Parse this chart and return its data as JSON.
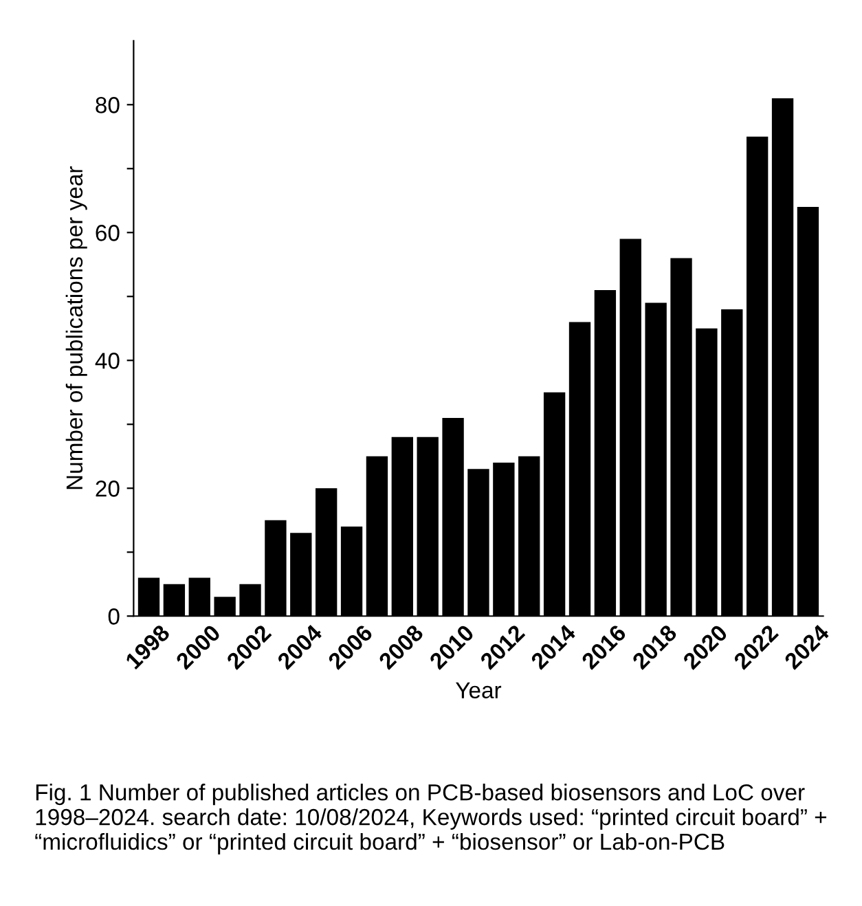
{
  "chart_data": {
    "type": "bar",
    "xlabel": "Year",
    "ylabel": "Number of publications per year",
    "categories": [
      "1998",
      null,
      "2000",
      null,
      "2002",
      null,
      "2004",
      null,
      "2006",
      null,
      "2008",
      null,
      "2010",
      null,
      "2012",
      null,
      "2014",
      null,
      "2016",
      null,
      "2018",
      null,
      "2020",
      null,
      "2022",
      null,
      "2024"
    ],
    "values": [
      6,
      5,
      6,
      3,
      5,
      15,
      13,
      20,
      14,
      25,
      28,
      28,
      31,
      23,
      24,
      25,
      35,
      46,
      51,
      59,
      49,
      56,
      45,
      48,
      75,
      81,
      64
    ],
    "color": "#000000",
    "ylim": [
      0,
      90
    ],
    "yticks": [
      0,
      {
        "value": 10,
        "label": null
      },
      20,
      {
        "value": 30,
        "label": null
      },
      40,
      {
        "value": 50,
        "label": null
      },
      60,
      {
        "value": 70,
        "label": null
      },
      80
    ],
    "grid": false,
    "annotations": [
      "Fig. 1 Number of published articles on PCB-based biosensors and LoC over 1998–2024. search date: 10/08/2024, Keywords used: “printed circuit board” + “microfluidics” or “printed circuit board” + “biosensor” or Lab-on-PCB"
    ]
  }
}
